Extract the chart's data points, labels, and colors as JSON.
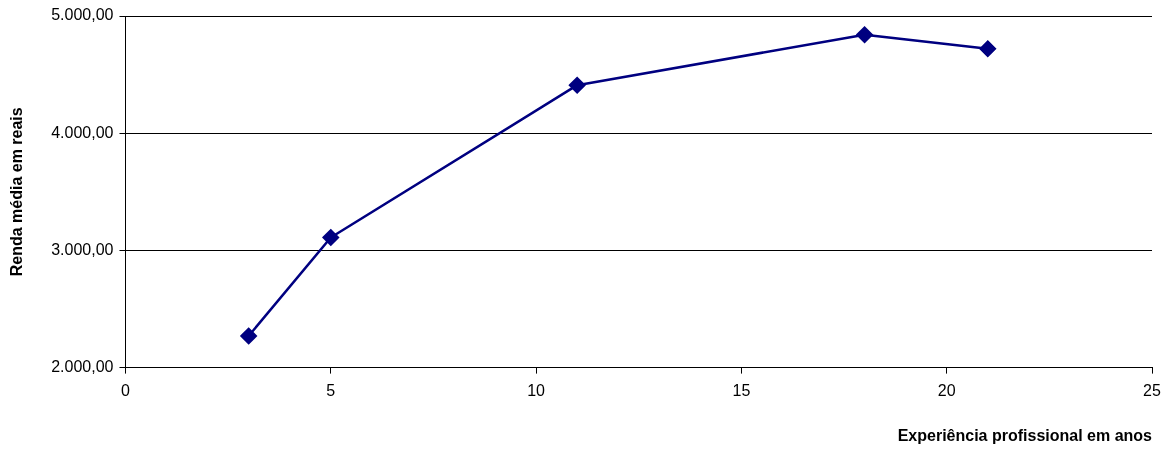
{
  "chart_data": {
    "type": "line",
    "xlabel": "Experiência profissional em anos",
    "ylabel": "Renda média em reais",
    "x": [
      3,
      5,
      11,
      18,
      21
    ],
    "series": [
      {
        "color": "#000080",
        "values": [
          2270,
          3110,
          4410,
          4840,
          4720
        ]
      }
    ],
    "xlim": [
      0,
      25
    ],
    "xticks": [
      0,
      5,
      10,
      15,
      20,
      25
    ],
    "ylim": [
      2000,
      5000
    ],
    "yticks": [
      {
        "value": 2000,
        "label": "2.000,00"
      },
      {
        "value": 3000,
        "label": "3.000,00"
      },
      {
        "value": 4000,
        "label": "4.000,00"
      },
      {
        "value": 5000,
        "label": "5.000,00"
      }
    ],
    "grid": "y",
    "legend": false,
    "marker": "diamond",
    "line_style": "solid"
  }
}
